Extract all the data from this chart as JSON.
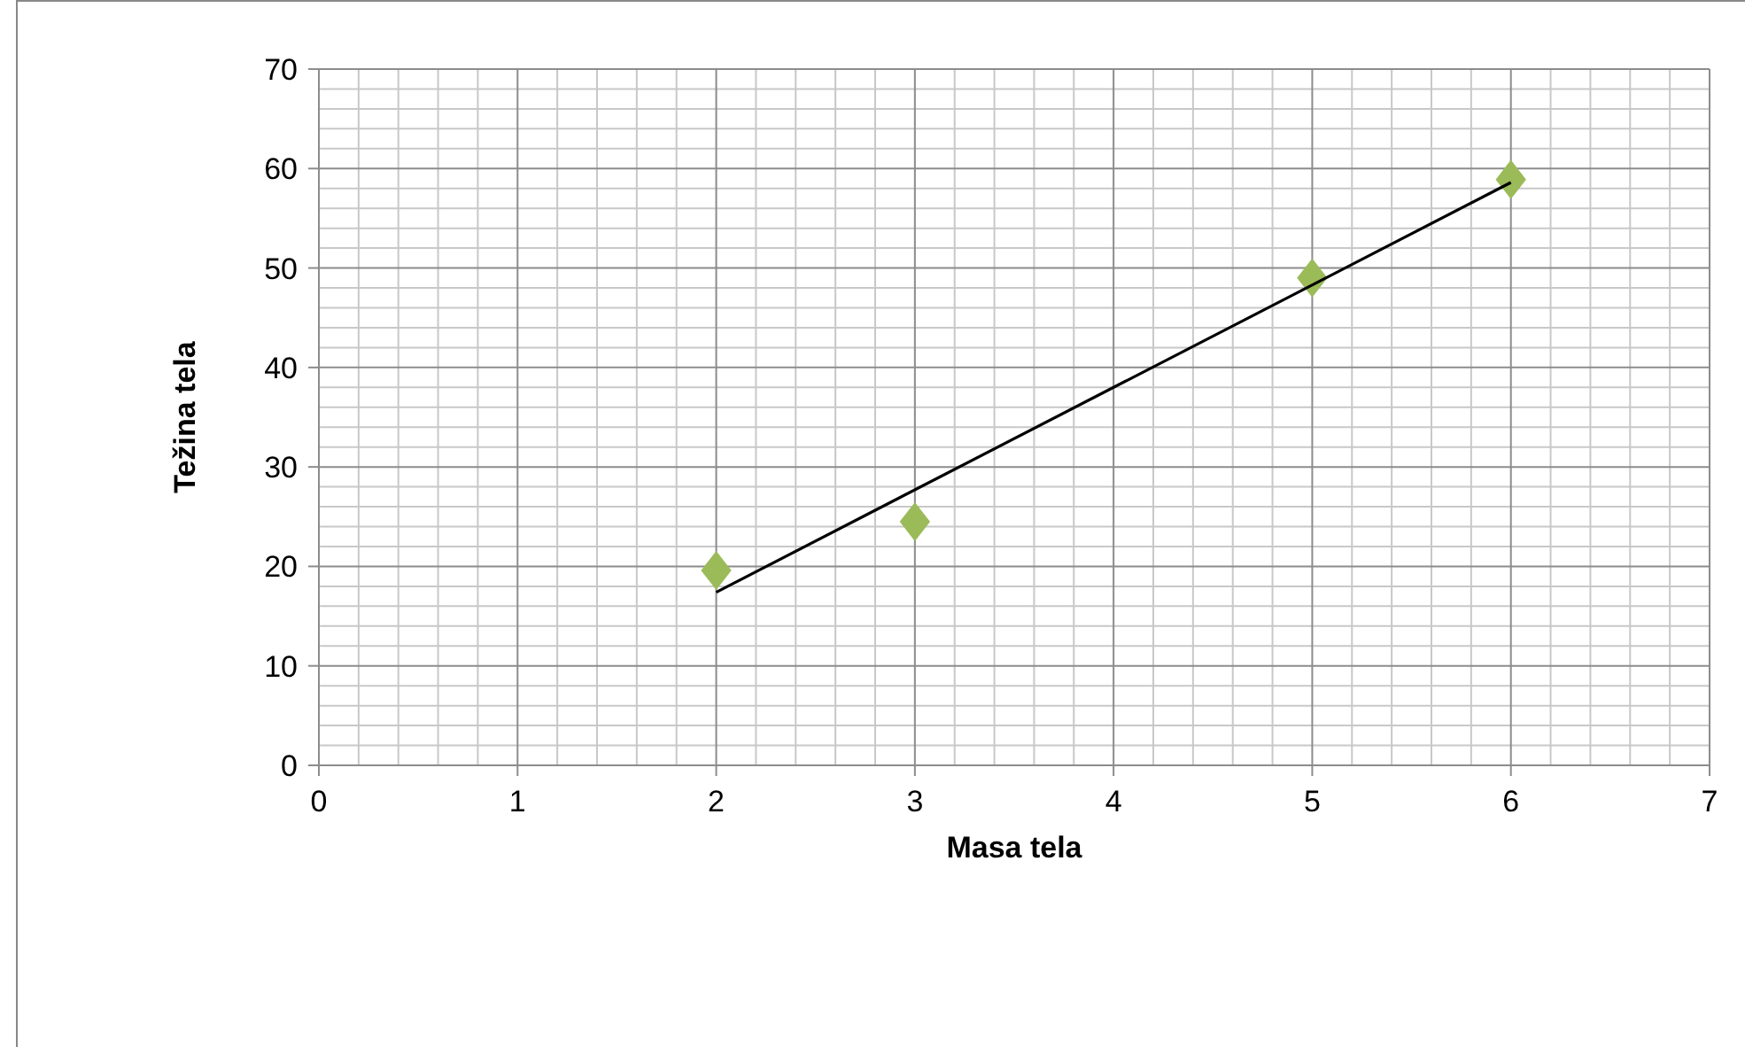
{
  "chart_data": {
    "type": "scatter",
    "xlabel": "Masa tela",
    "ylabel": "Težina tela",
    "series": [
      {
        "color": "#9bbb59",
        "x": [
          2,
          3,
          5,
          6
        ],
        "values": [
          19.6,
          24.5,
          49,
          58.9
        ],
        "marker": "diamond"
      },
      {
        "type": "line",
        "color": "#000000",
        "x": [
          2,
          6
        ],
        "values": [
          17.4,
          58.6
        ],
        "marker": "none"
      }
    ],
    "xlim": [
      0,
      7
    ],
    "ylim": [
      0,
      70
    ],
    "xticks": [
      0,
      1,
      2,
      3,
      4,
      5,
      6,
      7
    ],
    "yticks": [
      0,
      10,
      20,
      30,
      40,
      50,
      60,
      70
    ],
    "grid": true
  }
}
